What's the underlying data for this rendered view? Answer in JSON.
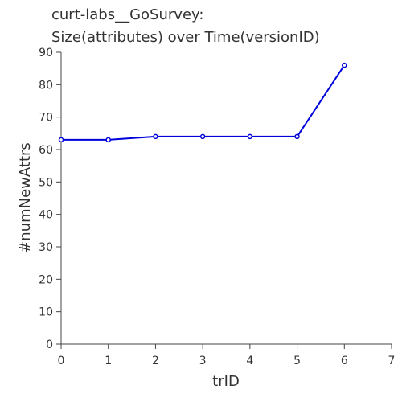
{
  "chart_data": {
    "type": "line",
    "title_lines": [
      "curt-labs__GoSurvey:",
      "Size(attributes) over Time(versionID)"
    ],
    "xlabel": "trID",
    "ylabel": "#numNewAttrs",
    "xlim": [
      0,
      7
    ],
    "ylim": [
      0,
      90
    ],
    "x_ticks": [
      0,
      1,
      2,
      3,
      4,
      5,
      6,
      7
    ],
    "y_ticks": [
      0,
      10,
      20,
      30,
      40,
      50,
      60,
      70,
      80,
      90
    ],
    "grid": false,
    "series": [
      {
        "x": [
          0,
          1,
          2,
          3,
          4,
          5,
          6
        ],
        "y": [
          63,
          63,
          64,
          64,
          64,
          64,
          86
        ],
        "color": "#0000dd"
      }
    ]
  }
}
